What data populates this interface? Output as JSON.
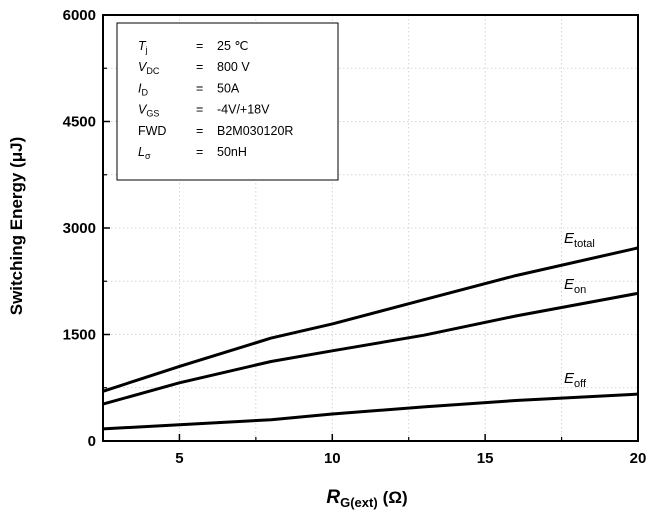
{
  "chart_data": {
    "type": "line",
    "xlabel": {
      "main": "R",
      "sub": "G(ext)",
      "unit": "(Ω)"
    },
    "ylabel": "Switching Energy (μJ)",
    "xlim": [
      2.5,
      20
    ],
    "ylim": [
      0,
      6000
    ],
    "xticks": [
      5,
      10,
      15,
      20
    ],
    "yticks": [
      0,
      1500,
      3000,
      4500,
      6000
    ],
    "grid": true,
    "series": [
      {
        "name": "E_total",
        "label_main": "E",
        "label_sub": "total",
        "x": [
          2.5,
          5,
          8,
          10,
          13,
          16,
          20
        ],
        "values": [
          700,
          1050,
          1450,
          1650,
          1990,
          2330,
          2720
        ]
      },
      {
        "name": "E_on",
        "label_main": "E",
        "label_sub": "on",
        "x": [
          2.5,
          5,
          8,
          10,
          13,
          16,
          20
        ],
        "values": [
          520,
          820,
          1120,
          1270,
          1490,
          1760,
          2080
        ]
      },
      {
        "name": "E_off",
        "label_main": "E",
        "label_sub": "off",
        "x": [
          2.5,
          5,
          8,
          10,
          13,
          16,
          20
        ],
        "values": [
          170,
          230,
          300,
          380,
          480,
          570,
          660
        ]
      }
    ],
    "conditions": [
      {
        "param": "T",
        "sub": "j",
        "italic": true,
        "value": "25 ℃"
      },
      {
        "param": "V",
        "sub": "DC",
        "italic": true,
        "value": "800 V"
      },
      {
        "param": "I",
        "sub": "D",
        "italic": true,
        "value": "50A"
      },
      {
        "param": "V",
        "sub": "GS",
        "italic": true,
        "value": "-4V/+18V"
      },
      {
        "param": "FWD",
        "sub": "",
        "italic": false,
        "value": "B2M030120R"
      },
      {
        "param": "L",
        "sub": "σ",
        "italic": true,
        "value": "50nH"
      }
    ],
    "conditions_separator": "="
  }
}
